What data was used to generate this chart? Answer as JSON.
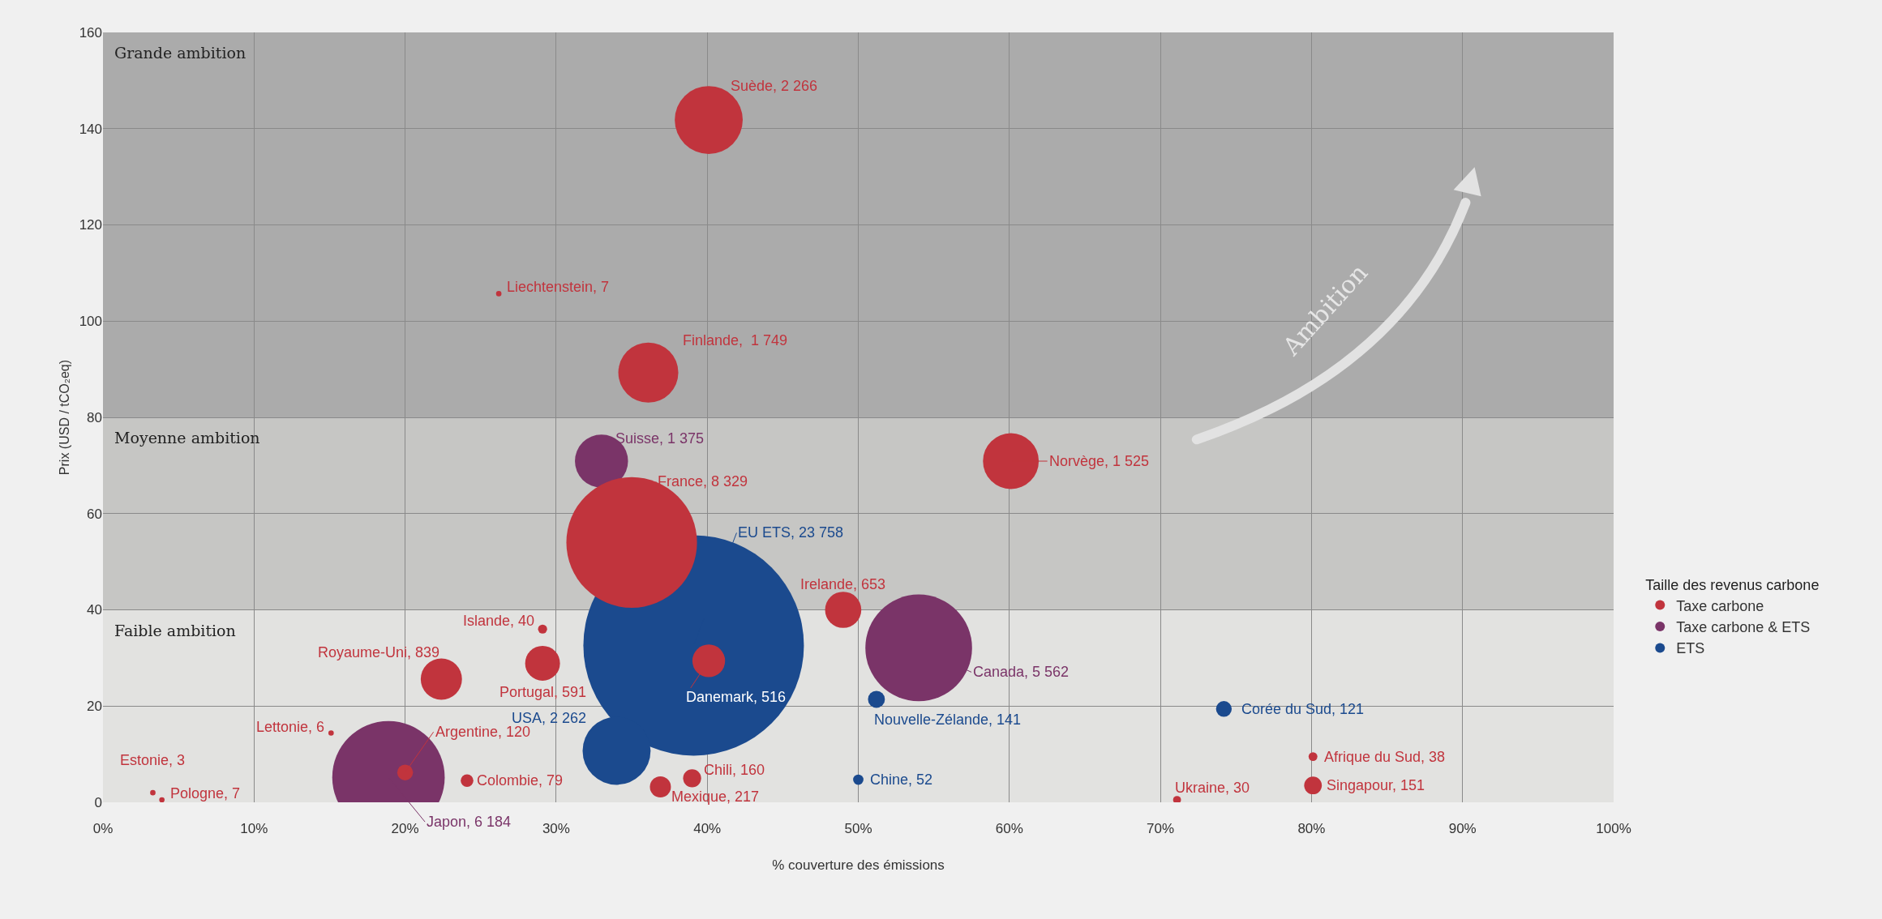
{
  "chart_data": {
    "type": "bubble",
    "xlabel": "% couverture des émissions",
    "ylabel": "Prix (USD / tCO₂eq)",
    "legend_title": "Taille des revenus carbone",
    "xlim": [
      0,
      100
    ],
    "ylim": [
      0,
      160
    ],
    "xticks": [
      {
        "value": 0,
        "label": "0%"
      },
      {
        "value": 10,
        "label": "10%"
      },
      {
        "value": 20,
        "label": "20%"
      },
      {
        "value": 30,
        "label": "30%"
      },
      {
        "value": 40,
        "label": "40%"
      },
      {
        "value": 50,
        "label": "50%"
      },
      {
        "value": 60,
        "label": "60%"
      },
      {
        "value": 70,
        "label": "70%"
      },
      {
        "value": 80,
        "label": "80%"
      },
      {
        "value": 90,
        "label": "90%"
      },
      {
        "value": 100,
        "label": "100%"
      }
    ],
    "yticks": [
      0,
      20,
      40,
      60,
      80,
      100,
      120,
      140,
      160
    ],
    "grid": true,
    "legend": "right",
    "bands": [
      {
        "axis": "y",
        "from": 80,
        "to": 160,
        "label": "Grande ambition",
        "color": "#ababab"
      },
      {
        "axis": "y",
        "from": 40,
        "to": 80,
        "label": "Moyenne ambition",
        "color": "#c6c6c4"
      },
      {
        "axis": "y",
        "from": 0,
        "to": 40,
        "label": "Faible ambition",
        "color": "#e2e2e0"
      }
    ],
    "series": [
      {
        "name": "ETS",
        "color": "#1b4a8e",
        "x": [
          39.1,
          34.0,
          51.2,
          74.2,
          50.0
        ],
        "values": [
          32.6,
          10.7,
          21.4,
          19.4,
          4.7
        ],
        "sizes": [
          1,
          0.095,
          0.0059,
          0.0051,
          0.0022
        ]
      },
      {
        "name": "Taxe carbone & ETS",
        "color": "#7a3468",
        "x": [
          33.0,
          54.0,
          18.9
        ],
        "values": [
          70.9,
          32.1,
          5.2
        ],
        "sizes": [
          0.058,
          0.234,
          0.26
        ]
      },
      {
        "name": "Taxe carbone",
        "color": "#c1343d",
        "x": [
          40.1,
          26.2,
          36.1,
          60.1,
          35.0,
          40.1,
          49.0,
          29.1,
          22.4,
          29.1,
          15.1,
          20.0,
          24.1,
          39.0,
          36.9,
          3.3,
          3.9,
          71.1,
          80.1,
          80.1
        ],
        "values": [
          141.8,
          105.7,
          89.3,
          70.9,
          54.0,
          29.4,
          40.0,
          36.0,
          25.6,
          28.9,
          14.4,
          6.2,
          4.5,
          5.0,
          3.2,
          2.0,
          0.5,
          0.5,
          9.5,
          3.5
        ],
        "sizes": [
          0.095,
          0.0006,
          0.074,
          0.064,
          0.351,
          0.022,
          0.027,
          0.0017,
          0.035,
          0.025,
          0.0006,
          0.0051,
          0.0033,
          0.0067,
          0.0091,
          0.0006,
          0.0006,
          0.0013,
          0.0016,
          0.0064
        ]
      }
    ],
    "annotations": [
      {
        "text": "Suède, 2 266",
        "x": 40.1,
        "y": 141.8
      },
      {
        "text": "Liechtenstein, 7",
        "x": 26.2,
        "y": 105.7
      },
      {
        "text": "Finlande,  1 749",
        "x": 36.1,
        "y": 89.3
      },
      {
        "text": "Suisse, 1 375",
        "x": 33.0,
        "y": 70.9
      },
      {
        "text": "Norvège, 1 525",
        "x": 60.1,
        "y": 70.9
      },
      {
        "text": "France, 8 329",
        "x": 35.0,
        "y": 54.0
      },
      {
        "text": "EU ETS, 23 758",
        "x": 39.1,
        "y": 32.6
      },
      {
        "text": "Danemark, 516",
        "x": 40.1,
        "y": 29.4
      },
      {
        "text": "Irelande, 653",
        "x": 49.0,
        "y": 40.0
      },
      {
        "text": "Canada, 5 562",
        "x": 54.0,
        "y": 32.1
      },
      {
        "text": "Islande, 40",
        "x": 29.1,
        "y": 36.0
      },
      {
        "text": "Royaume-Uni, 839",
        "x": 22.4,
        "y": 25.6
      },
      {
        "text": "Portugal, 591",
        "x": 29.1,
        "y": 28.9
      },
      {
        "text": "Nouvelle-Zélande, 141",
        "x": 51.2,
        "y": 21.4
      },
      {
        "text": "Corée du Sud, 121",
        "x": 74.2,
        "y": 19.4
      },
      {
        "text": "Lettonie, 6",
        "x": 15.1,
        "y": 14.4
      },
      {
        "text": "Argentine, 120",
        "x": 20.0,
        "y": 6.2
      },
      {
        "text": "Japon, 6 184",
        "x": 18.9,
        "y": 5.2
      },
      {
        "text": "USA, 2 262",
        "x": 34.0,
        "y": 10.7
      },
      {
        "text": "Colombie, 79",
        "x": 24.1,
        "y": 4.5
      },
      {
        "text": "Chili, 160",
        "x": 39.0,
        "y": 5.0
      },
      {
        "text": "Mexique, 217",
        "x": 36.9,
        "y": 3.2
      },
      {
        "text": "Chine, 52",
        "x": 50.0,
        "y": 4.7
      },
      {
        "text": "Estonie, 3",
        "x": 3.3,
        "y": 2.0
      },
      {
        "text": "Pologne, 7",
        "x": 3.9,
        "y": 0.5
      },
      {
        "text": "Ukraine, 30",
        "x": 71.1,
        "y": 0.5
      },
      {
        "text": "Afrique du Sud, 38",
        "x": 80.1,
        "y": 9.5
      },
      {
        "text": "Singapour, 151",
        "x": 80.1,
        "y": 3.5
      },
      "Ambition"
    ]
  }
}
